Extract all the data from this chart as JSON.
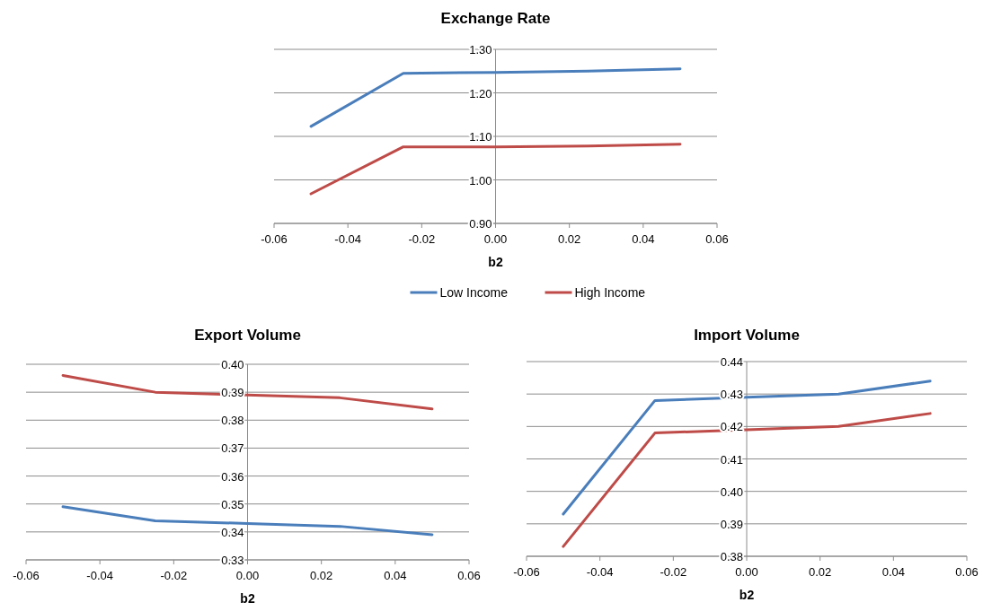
{
  "chart_data": [
    {
      "type": "line",
      "title": "Exchange Rate",
      "xlabel": "b2",
      "x": [
        -0.05,
        -0.025,
        0,
        0.025,
        0.05
      ],
      "xlim": [
        -0.06,
        0.06
      ],
      "xticks": [
        {
          "value": -0.06,
          "label": "-0.06"
        },
        {
          "value": -0.04,
          "label": "-0.04"
        },
        {
          "value": -0.02,
          "label": "-0.02"
        },
        {
          "value": 0,
          "label": "0.00"
        },
        {
          "value": 0.02,
          "label": "0.02"
        },
        {
          "value": 0.04,
          "label": "0.04"
        },
        {
          "value": 0.06,
          "label": "0.06"
        }
      ],
      "ylim": [
        0.9,
        1.3
      ],
      "yticks": [
        {
          "value": 0.9,
          "label": "0.90"
        },
        {
          "value": 1.0,
          "label": "1.00"
        },
        {
          "value": 1.1,
          "label": "1.10"
        },
        {
          "value": 1.2,
          "label": "1.20"
        },
        {
          "value": 1.3,
          "label": "1.30"
        }
      ],
      "grid": "y",
      "legend": "bottom",
      "marker": "none",
      "series": [
        {
          "name": "Low Income",
          "color": "#4a7ebb",
          "values": [
            1.123,
            1.245,
            1.247,
            1.25,
            1.255
          ]
        },
        {
          "name": "High Income",
          "color": "#be4b48",
          "values": [
            0.968,
            1.076,
            1.076,
            1.078,
            1.082
          ]
        }
      ]
    },
    {
      "type": "line",
      "title": "Export Volume",
      "xlabel": "b2",
      "x": [
        -0.05,
        -0.025,
        0,
        0.025,
        0.05
      ],
      "xlim": [
        -0.06,
        0.06
      ],
      "xticks": [
        {
          "value": -0.06,
          "label": "-0.06"
        },
        {
          "value": -0.04,
          "label": "-0.04"
        },
        {
          "value": -0.02,
          "label": "-0.02"
        },
        {
          "value": 0,
          "label": "0.00"
        },
        {
          "value": 0.02,
          "label": "0.02"
        },
        {
          "value": 0.04,
          "label": "0.04"
        },
        {
          "value": 0.06,
          "label": "0.06"
        }
      ],
      "ylim": [
        0.33,
        0.4
      ],
      "yticks": [
        {
          "value": 0.33,
          "label": "0.33"
        },
        {
          "value": 0.34,
          "label": "0.34"
        },
        {
          "value": 0.35,
          "label": "0.35"
        },
        {
          "value": 0.36,
          "label": "0.36"
        },
        {
          "value": 0.37,
          "label": "0.37"
        },
        {
          "value": 0.38,
          "label": "0.38"
        },
        {
          "value": 0.39,
          "label": "0.39"
        },
        {
          "value": 0.4,
          "label": "0.40"
        }
      ],
      "grid": "y",
      "marker": "none",
      "series": [
        {
          "color": "#4a7ebb",
          "values": [
            0.349,
            0.344,
            0.343,
            0.342,
            0.339
          ]
        },
        {
          "color": "#be4b48",
          "values": [
            0.396,
            0.39,
            0.389,
            0.388,
            0.384
          ]
        }
      ]
    },
    {
      "type": "line",
      "title": "Import Volume",
      "xlabel": "b2",
      "x": [
        -0.05,
        -0.025,
        0,
        0.025,
        0.05
      ],
      "xlim": [
        -0.06,
        0.06
      ],
      "xticks": [
        {
          "value": -0.06,
          "label": "-0.06"
        },
        {
          "value": -0.04,
          "label": "-0.04"
        },
        {
          "value": -0.02,
          "label": "-0.02"
        },
        {
          "value": 0,
          "label": "0.00"
        },
        {
          "value": 0.02,
          "label": "0.02"
        },
        {
          "value": 0.04,
          "label": "0.04"
        },
        {
          "value": 0.06,
          "label": "0.06"
        }
      ],
      "ylim": [
        0.38,
        0.44
      ],
      "yticks": [
        {
          "value": 0.38,
          "label": "0.38"
        },
        {
          "value": 0.39,
          "label": "0.39"
        },
        {
          "value": 0.4,
          "label": "0.40"
        },
        {
          "value": 0.41,
          "label": "0.41"
        },
        {
          "value": 0.42,
          "label": "0.42"
        },
        {
          "value": 0.43,
          "label": "0.43"
        },
        {
          "value": 0.44,
          "label": "0.44"
        }
      ],
      "grid": "y",
      "marker": "none",
      "series": [
        {
          "color": "#4a7ebb",
          "values": [
            0.393,
            0.428,
            0.429,
            0.43,
            0.434
          ]
        },
        {
          "color": "#be4b48",
          "values": [
            0.383,
            0.418,
            0.419,
            0.42,
            0.424
          ]
        }
      ]
    }
  ]
}
